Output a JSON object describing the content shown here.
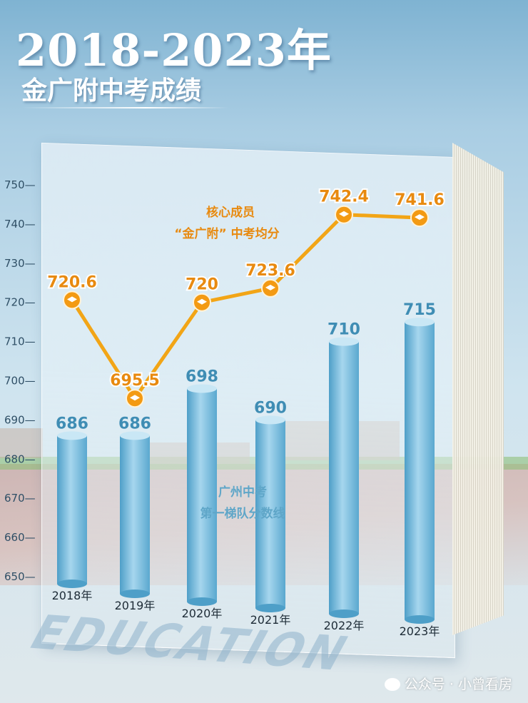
{
  "header": {
    "title": "2018-2023年",
    "subtitle": "金广附中考成绩"
  },
  "footer": {
    "text": "公众号 · 小曾看房",
    "icon": "wechat-icon"
  },
  "watermark": "EDUCATION",
  "chart_data": {
    "type": "bar",
    "categories": [
      "2018年",
      "2019年",
      "2020年",
      "2021年",
      "2022年",
      "2023年"
    ],
    "ylim": [
      650,
      755
    ],
    "yticks": [
      650,
      660,
      670,
      680,
      690,
      700,
      710,
      720,
      730,
      740,
      750
    ],
    "series": [
      {
        "name": "广州中考第一梯队分数线",
        "kind": "bar",
        "values": [
          686,
          686,
          698,
          690,
          710,
          715
        ],
        "labels": [
          "686",
          "686",
          "698",
          "690",
          "710",
          "715"
        ],
        "color": "#6ab3d6"
      },
      {
        "name": "核心成员“金广附”中考均分",
        "kind": "line",
        "values": [
          720.6,
          695.5,
          720,
          723.6,
          742.4,
          741.6
        ],
        "labels": [
          "720.6",
          "695.5",
          "720",
          "723.6",
          "742.4",
          "741.6"
        ],
        "color": "#f2a516"
      }
    ],
    "annotations": {
      "line_label_1": "核心成员",
      "line_label_2": "“金广附” 中考均分",
      "bar_label_1": "广州中考",
      "bar_label_2": "第一梯队分数线"
    },
    "legend": "none",
    "grid": false
  }
}
